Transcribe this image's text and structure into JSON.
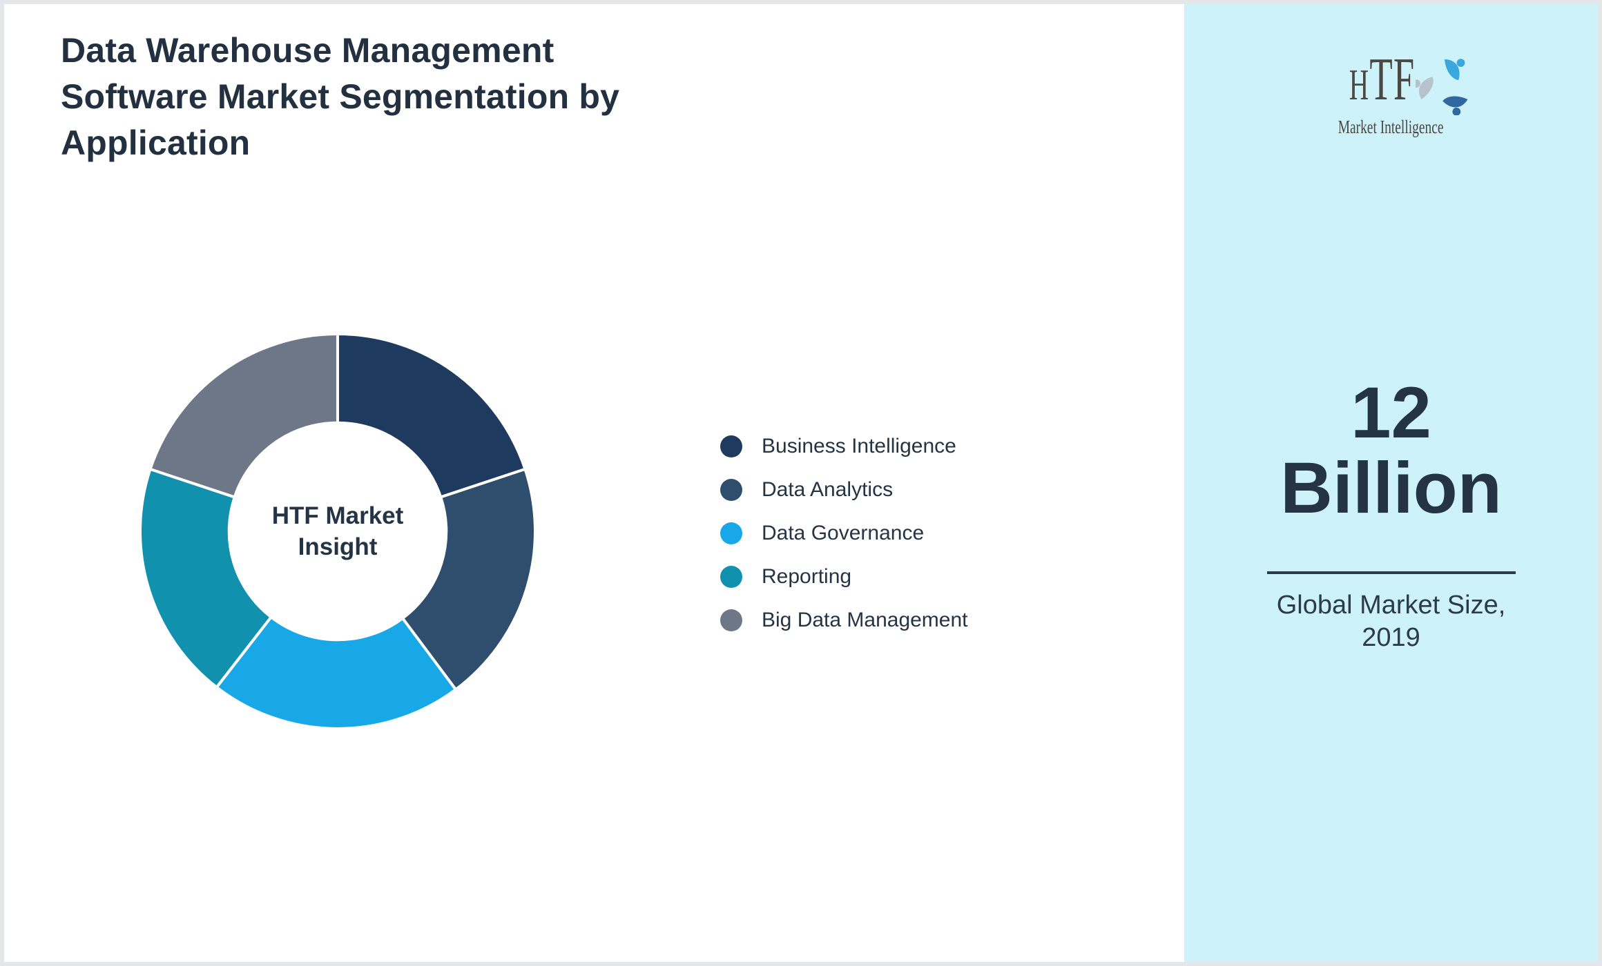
{
  "colors": {
    "ink": "#243444",
    "title": "#22303F",
    "sidebar_bg": "#CEF2F9",
    "page_border": "#E4E7EA",
    "divider": "#2C3A49",
    "logo_text": "#4B4743",
    "logo_swirl": [
      "#3AA7DE",
      "#2F689E",
      "#B7C3CC"
    ]
  },
  "title": {
    "lines": [
      "Data Warehouse Management",
      "Software Market Segmentation by",
      "Application"
    ]
  },
  "chart_data": {
    "type": "pie",
    "subtype": "donut",
    "categories": [
      "Business Intelligence",
      "Data Analytics",
      "Data Governance",
      "Reporting",
      "Big Data Management"
    ],
    "values": [
      19.9,
      19.9,
      20.7,
      19.6,
      19.9
    ],
    "colors": [
      "#1E3A5F",
      "#2F4E6D",
      "#18A8E8",
      "#1191AD",
      "#6D7787"
    ],
    "start_angle_deg": 0,
    "direction": "clockwise",
    "inner_radius_ratio": 0.55,
    "separator_color": "#FFFFFF",
    "data_labels": "none",
    "legend_position": "right",
    "center_label_lines": [
      "HTF Market",
      "Insight"
    ]
  },
  "sidebar": {
    "logo": {
      "wordmark": "HTF",
      "subtitle": "Market Intelligence"
    },
    "market_size": {
      "value_lines": [
        "12",
        "Billion"
      ],
      "caption_lines": [
        "Global Market Size,",
        "2019"
      ]
    }
  }
}
